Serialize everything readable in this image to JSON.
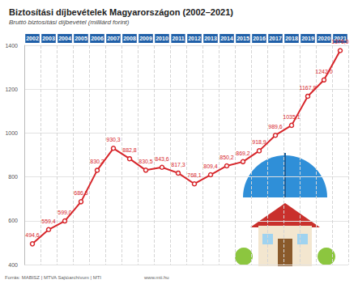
{
  "chart_data": {
    "type": "line",
    "title": "Biztosítási díjbevételek Magyarországon (2002–2021)",
    "subtitle": "Bruttó biztosítási díjbevétel (milliárd forint)",
    "annotations": [
      "Forrás: MABISZ | MTVA Sajtóarchívum | MTI",
      "www.mti.hu"
    ],
    "categories": [
      "2002",
      "2003",
      "2004",
      "2005",
      "2006",
      "2007",
      "2008",
      "2009",
      "2010",
      "2011",
      "2012",
      "2013",
      "2014",
      "2015",
      "2016",
      "2017",
      "2018",
      "2019",
      "2020",
      "2021"
    ],
    "values": [
      494.6,
      559.4,
      599.0,
      686.5,
      830.2,
      930.3,
      882.8,
      830.5,
      843.6,
      817.3,
      768.1,
      809.4,
      850.2,
      869.2,
      918.9,
      989.6,
      1035.1,
      1167.8,
      1242.0,
      1376.0
    ],
    "value_labels": [
      "494,6",
      "559,4",
      "599,0",
      "686,5",
      "830,2",
      "930,3",
      "882,8",
      "830,5",
      "843,6",
      "817,3",
      "768,1",
      "809,4",
      "850,2",
      "869,2",
      "918,9",
      "989,6",
      "1035,1",
      "1167,8",
      "1242,0",
      "1376,0"
    ],
    "color": "#d7262b",
    "ylim": [
      400,
      1400
    ],
    "yticks": [
      400,
      600,
      800,
      1000,
      1200,
      1400
    ],
    "grid": true,
    "data_labels": true,
    "marker": "circle"
  }
}
